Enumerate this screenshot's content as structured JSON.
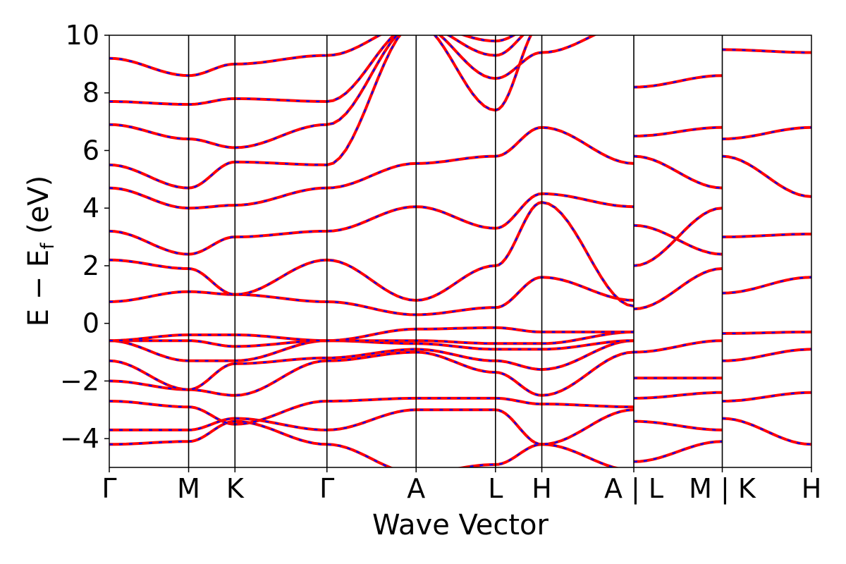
{
  "chart_data": {
    "type": "line",
    "xlabel": "Wave Vector",
    "ylabel": "E − E",
    "ylabel_sub": "f",
    "ylabel_unit": " (eV)",
    "ylim": [
      -5,
      10
    ],
    "yticks": [
      {
        "value": 10,
        "label": "10"
      },
      {
        "value": 8,
        "label": "8"
      },
      {
        "value": 6,
        "label": "6"
      },
      {
        "value": 4,
        "label": "4"
      },
      {
        "value": 2,
        "label": "2"
      },
      {
        "value": 0,
        "label": "0"
      },
      {
        "value": -2,
        "label": "−2"
      },
      {
        "value": -4,
        "label": "−4"
      }
    ],
    "xlim": [
      0,
      1
    ],
    "high_symmetry_points": [
      {
        "x": 0.0,
        "label": "Γ"
      },
      {
        "x": 0.113,
        "label": "M"
      },
      {
        "x": 0.179,
        "label": "K"
      },
      {
        "x": 0.31,
        "label": "Γ"
      },
      {
        "x": 0.437,
        "label": "A"
      },
      {
        "x": 0.55,
        "label": "L"
      },
      {
        "x": 0.616,
        "label": "H"
      },
      {
        "x": 0.747,
        "label": "A | L"
      },
      {
        "x": 0.873,
        "label": "M | K"
      },
      {
        "x": 1.0,
        "label": "H"
      }
    ],
    "path_breaks": [
      0.747,
      0.873
    ],
    "series": [
      {
        "color": "#ff0000",
        "style": "solid"
      },
      {
        "color": "#0000ff",
        "style": "dashed"
      }
    ],
    "bands": [
      [
        [
          0,
          -4.2
        ],
        [
          0.113,
          -4.1
        ],
        [
          0.179,
          -3.4
        ],
        [
          0.31,
          -4.2
        ],
        [
          0.437,
          -5.2
        ],
        [
          0.55,
          -4.9
        ],
        [
          0.616,
          -4.2
        ],
        [
          0.747,
          -5.1
        ]
      ],
      [
        [
          0,
          -3.7
        ],
        [
          0.113,
          -3.7
        ],
        [
          0.179,
          -3.3
        ],
        [
          0.31,
          -3.7
        ],
        [
          0.437,
          -3.0
        ],
        [
          0.55,
          -3.0
        ],
        [
          0.616,
          -4.2
        ],
        [
          0.747,
          -3.0
        ]
      ],
      [
        [
          0,
          -2.7
        ],
        [
          0.113,
          -2.9
        ],
        [
          0.179,
          -3.5
        ],
        [
          0.31,
          -2.7
        ],
        [
          0.437,
          -2.6
        ],
        [
          0.55,
          -2.6
        ],
        [
          0.616,
          -2.8
        ],
        [
          0.747,
          -2.9
        ]
      ],
      [
        [
          0,
          -2.0
        ],
        [
          0.113,
          -2.3
        ],
        [
          0.179,
          -2.5
        ],
        [
          0.31,
          -1.3
        ],
        [
          0.437,
          -1.0
        ],
        [
          0.55,
          -1.7
        ],
        [
          0.616,
          -2.5
        ],
        [
          0.747,
          -1.0
        ]
      ],
      [
        [
          0,
          -1.3
        ],
        [
          0.113,
          -2.3
        ],
        [
          0.179,
          -1.4
        ],
        [
          0.31,
          -1.2
        ],
        [
          0.437,
          -0.9
        ],
        [
          0.55,
          -1.3
        ],
        [
          0.616,
          -1.6
        ],
        [
          0.747,
          -0.6
        ]
      ],
      [
        [
          0,
          -0.6
        ],
        [
          0.113,
          -1.3
        ],
        [
          0.179,
          -1.3
        ],
        [
          0.31,
          -0.6
        ],
        [
          0.437,
          -0.7
        ],
        [
          0.55,
          -0.9
        ],
        [
          0.616,
          -0.9
        ],
        [
          0.747,
          -0.6
        ]
      ],
      [
        [
          0,
          -0.6
        ],
        [
          0.113,
          -0.6
        ],
        [
          0.179,
          -0.8
        ],
        [
          0.31,
          -0.6
        ],
        [
          0.437,
          -0.6
        ],
        [
          0.55,
          -0.7
        ],
        [
          0.616,
          -0.7
        ],
        [
          0.747,
          -0.3
        ]
      ],
      [
        [
          0,
          -0.6
        ],
        [
          0.113,
          -0.4
        ],
        [
          0.179,
          -0.4
        ],
        [
          0.31,
          -0.6
        ],
        [
          0.437,
          -0.2
        ],
        [
          0.55,
          -0.15
        ],
        [
          0.616,
          -0.3
        ],
        [
          0.747,
          -0.3
        ]
      ],
      [
        [
          0,
          0.75
        ],
        [
          0.113,
          1.1
        ],
        [
          0.179,
          1.0
        ],
        [
          0.31,
          0.75
        ],
        [
          0.437,
          0.3
        ],
        [
          0.55,
          0.55
        ],
        [
          0.616,
          1.6
        ],
        [
          0.747,
          0.8
        ]
      ],
      [
        [
          0,
          2.2
        ],
        [
          0.113,
          1.9
        ],
        [
          0.179,
          1.0
        ],
        [
          0.31,
          2.2
        ],
        [
          0.437,
          0.8
        ],
        [
          0.55,
          2.0
        ],
        [
          0.616,
          4.2
        ],
        [
          0.747,
          0.6
        ]
      ],
      [
        [
          0,
          3.2
        ],
        [
          0.113,
          2.4
        ],
        [
          0.179,
          3.0
        ],
        [
          0.31,
          3.2
        ],
        [
          0.437,
          4.05
        ],
        [
          0.55,
          3.3
        ],
        [
          0.616,
          4.5
        ],
        [
          0.747,
          4.05
        ]
      ],
      [
        [
          0,
          4.7
        ],
        [
          0.113,
          4.0
        ],
        [
          0.179,
          4.1
        ],
        [
          0.31,
          4.7
        ],
        [
          0.437,
          5.55
        ],
        [
          0.55,
          5.8
        ],
        [
          0.616,
          6.8
        ],
        [
          0.747,
          5.55
        ]
      ],
      [
        [
          0,
          5.5
        ],
        [
          0.113,
          4.7
        ],
        [
          0.179,
          5.6
        ],
        [
          0.31,
          5.5
        ],
        [
          0.437,
          10.4
        ],
        [
          0.55,
          7.4
        ],
        [
          0.616,
          10.4
        ],
        [
          0.747,
          10.4
        ]
      ],
      [
        [
          0,
          6.9
        ],
        [
          0.113,
          6.4
        ],
        [
          0.179,
          6.1
        ],
        [
          0.31,
          6.9
        ],
        [
          0.437,
          10.4
        ],
        [
          0.55,
          8.5
        ],
        [
          0.616,
          9.4
        ],
        [
          0.747,
          10.4
        ]
      ],
      [
        [
          0,
          7.7
        ],
        [
          0.113,
          7.6
        ],
        [
          0.179,
          7.8
        ],
        [
          0.31,
          7.7
        ],
        [
          0.437,
          10.4
        ],
        [
          0.55,
          9.3
        ],
        [
          0.616,
          10.4
        ],
        [
          0.747,
          10.4
        ]
      ],
      [
        [
          0,
          9.2
        ],
        [
          0.113,
          8.6
        ],
        [
          0.179,
          9.0
        ],
        [
          0.31,
          9.3
        ],
        [
          0.437,
          10.4
        ],
        [
          0.55,
          9.8
        ],
        [
          0.616,
          10.4
        ],
        [
          0.747,
          10.4
        ]
      ],
      [
        [
          0.747,
          -4.8
        ],
        [
          0.873,
          -4.1
        ]
      ],
      [
        [
          0.747,
          -3.4
        ],
        [
          0.873,
          -3.7
        ]
      ],
      [
        [
          0.747,
          -2.6
        ],
        [
          0.873,
          -2.4
        ]
      ],
      [
        [
          0.747,
          -1.9
        ],
        [
          0.873,
          -1.9
        ]
      ],
      [
        [
          0.747,
          -1.0
        ],
        [
          0.873,
          -0.6
        ]
      ],
      [
        [
          0.747,
          0.5
        ],
        [
          0.873,
          1.9
        ]
      ],
      [
        [
          0.747,
          2.0
        ],
        [
          0.873,
          4.0
        ]
      ],
      [
        [
          0.747,
          3.4
        ],
        [
          0.873,
          2.4
        ]
      ],
      [
        [
          0.747,
          5.8
        ],
        [
          0.873,
          4.7
        ]
      ],
      [
        [
          0.747,
          6.5
        ],
        [
          0.873,
          6.8
        ]
      ],
      [
        [
          0.747,
          8.2
        ],
        [
          0.873,
          8.6
        ]
      ],
      [
        [
          0.873,
          -3.3
        ],
        [
          1.0,
          -4.2
        ]
      ],
      [
        [
          0.873,
          -2.7
        ],
        [
          1.0,
          -2.4
        ]
      ],
      [
        [
          0.873,
          -1.3
        ],
        [
          1.0,
          -0.9
        ]
      ],
      [
        [
          0.873,
          -0.35
        ],
        [
          1.0,
          -0.3
        ]
      ],
      [
        [
          0.873,
          1.05
        ],
        [
          1.0,
          1.6
        ]
      ],
      [
        [
          0.873,
          3.0
        ],
        [
          1.0,
          3.1
        ]
      ],
      [
        [
          0.873,
          5.8
        ],
        [
          1.0,
          4.4
        ]
      ],
      [
        [
          0.873,
          6.4
        ],
        [
          1.0,
          6.8
        ]
      ],
      [
        [
          0.873,
          9.5
        ],
        [
          1.0,
          9.4
        ]
      ]
    ]
  }
}
